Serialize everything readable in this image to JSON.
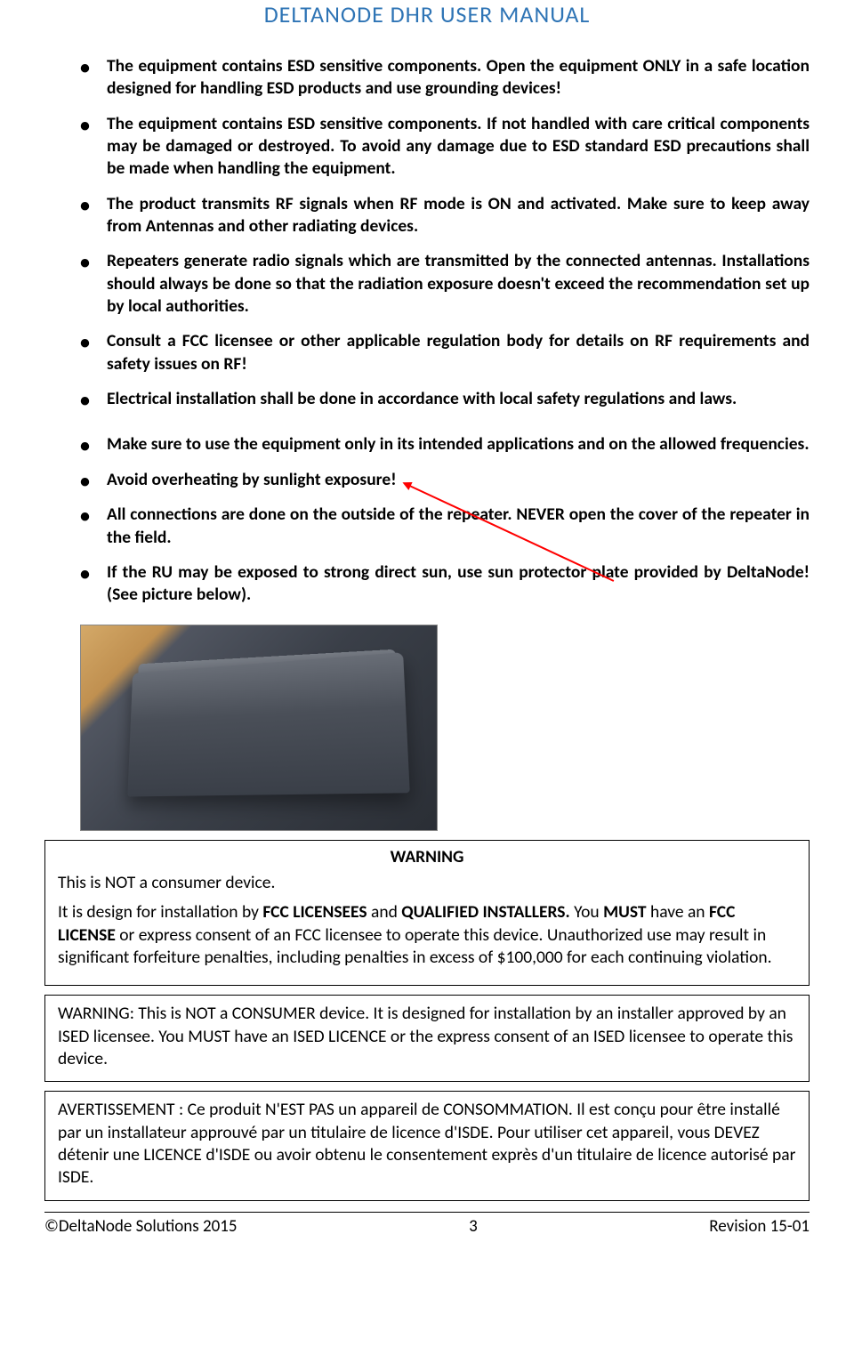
{
  "header": {
    "title": "DELTANODE DHR USER MANUAL"
  },
  "bullets": [
    "The equipment contains ESD sensitive components. Open the equipment ONLY in a safe location designed for handling ESD products and use grounding devices!",
    "The equipment contains ESD sensitive components. If not handled with care critical components may be damaged or destroyed. To avoid any damage due to ESD standard ESD precautions shall be made when handling the equipment.",
    "The product transmits RF signals when RF mode is ON and activated. Make sure to keep away from Antennas and other radiating devices.",
    "Repeaters generate radio signals which are transmitted by the connected antennas. Installations should always be done so that the radiation exposure doesn't exceed the recommendation set up by local authorities.",
    "Consult a FCC licensee or other applicable regulation body for details on RF requirements and safety issues on RF!",
    "Electrical installation shall be done in accordance with local safety regulations and laws.",
    "Make sure to use the equipment only in its intended applications and on the allowed frequencies.",
    "Avoid overheating by sunlight exposure!",
    "All connections are done on the outside of the repeater. NEVER open the cover of the repeater in the field.",
    "If the RU may be exposed to strong direct sun, use sun protector plate provided by DeltaNode! (See picture below)."
  ],
  "warning1": {
    "title": "WARNING",
    "line1": "This is NOT a consumer device.",
    "line2_prefix": "It is design for installation by ",
    "line2_bold1": "FCC LICENSEES",
    "line2_mid1": " and ",
    "line2_bold2": "QUALIFIED INSTALLERS.",
    "line2_mid2": " You ",
    "line2_bold3": "MUST",
    "line2_mid3": " have an ",
    "line2_bold4": "FCC LICENSE",
    "line2_suffix": " or express consent of an FCC licensee to operate this device. Unauthorized use may result in significant forfeiture penalties, including penalties in excess of $100,000 for each continuing violation."
  },
  "warning2": {
    "text": "WARNING: This is NOT a CONSUMER device. It is designed for installation by an installer approved by an ISED licensee. You MUST have an ISED LICENCE or the express consent of an ISED licensee to operate this device."
  },
  "warning3": {
    "text": "AVERTISSEMENT : Ce produit N'EST PAS un appareil de CONSOMMATION. Il est conçu pour être installé par un installateur approuvé par un titulaire de licence d'ISDE. Pour utiliser cet appareil, vous DEVEZ détenir une LICENCE d'ISDE ou avoir obtenu le consentement exprès d'un titulaire de licence autorisé par ISDE."
  },
  "footer": {
    "copyright": "©DeltaNode Solutions 2015",
    "page": "3",
    "revision": "Revision 15-01"
  },
  "colors": {
    "header_color": "#2e74b5",
    "text_color": "#000000",
    "arrow_color": "#ff0000",
    "border_color": "#000000"
  }
}
